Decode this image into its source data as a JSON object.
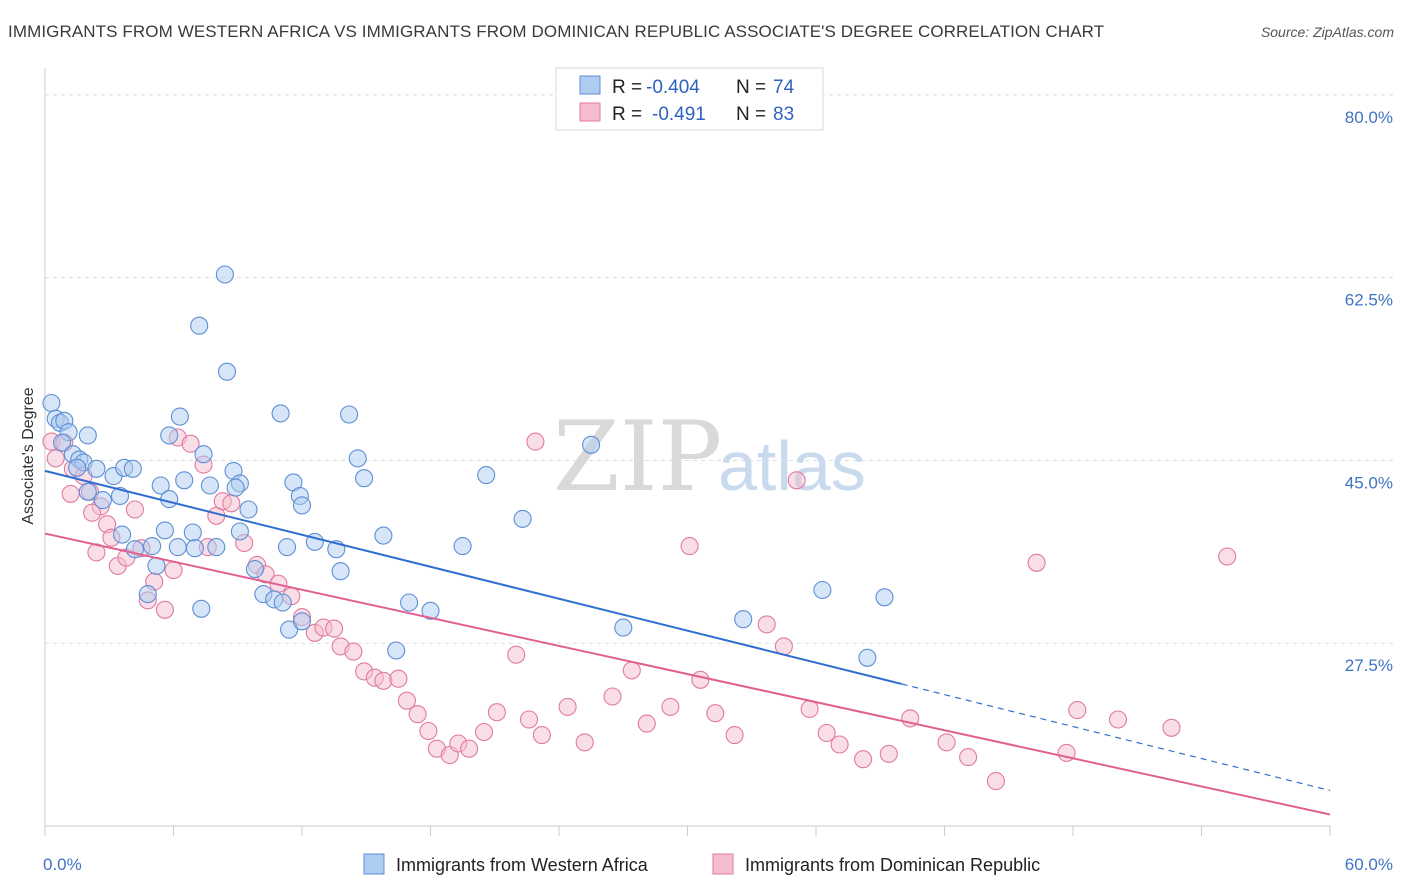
{
  "title": "IMMIGRANTS FROM WESTERN AFRICA VS IMMIGRANTS FROM DOMINICAN REPUBLIC ASSOCIATE'S DEGREE CORRELATION CHART",
  "source": "Source: ZipAtlas.com",
  "watermark": {
    "zip": "ZIP",
    "atlas": "atlas"
  },
  "colors": {
    "blue_fill": "#aecbf0",
    "blue_stroke": "#5d8fd6",
    "blue_line": "#2f6fcf",
    "pink_fill": "#f6bdd0",
    "pink_stroke": "#e07aa0",
    "pink_line": "#e0608f",
    "grid": "#dddddd",
    "axis_text": "#3f73c4"
  },
  "legend": {
    "entries": [
      {
        "r_label": "R =",
        "r_value": "-0.404",
        "n_label": "N =",
        "n_value": "74"
      },
      {
        "r_label": "R =",
        "r_value": "-0.491",
        "n_label": "N =",
        "n_value": "83"
      }
    ]
  },
  "chart_data": {
    "type": "scatter",
    "title": "IMMIGRANTS FROM WESTERN AFRICA VS IMMIGRANTS FROM DOMINICAN REPUBLIC ASSOCIATE'S DEGREE CORRELATION CHART",
    "ylabel": "Associate's Degree",
    "xlabel": "",
    "xlim": [
      0,
      60
    ],
    "ylim": [
      10,
      82
    ],
    "x_tick_labels": [
      "0.0%",
      "60.0%"
    ],
    "y_ticks": [
      {
        "value": 80.0,
        "label": "80.0%"
      },
      {
        "value": 62.5,
        "label": "62.5%"
      },
      {
        "value": 45.0,
        "label": "45.0%"
      },
      {
        "value": 27.5,
        "label": "27.5%"
      }
    ],
    "grid": "horizontal dashed",
    "legend_position": "top-center",
    "series": [
      {
        "name": "Immigrants from Western Africa",
        "color": "#5d8fd6",
        "trend": {
          "x0": 0,
          "y0": 44.0,
          "x1": 40,
          "y1": 23.6,
          "dash_to_x": 60,
          "dash_to_y": 13.4
        },
        "points": [
          [
            0.3,
            50.5
          ],
          [
            0.5,
            49.0
          ],
          [
            0.7,
            48.6
          ],
          [
            0.9,
            48.8
          ],
          [
            1.1,
            47.7
          ],
          [
            0.8,
            46.7
          ],
          [
            1.3,
            45.6
          ],
          [
            1.6,
            45.1
          ],
          [
            1.8,
            44.8
          ],
          [
            2.0,
            47.4
          ],
          [
            1.5,
            44.3
          ],
          [
            2.4,
            44.2
          ],
          [
            2.0,
            42.0
          ],
          [
            2.7,
            41.2
          ],
          [
            3.2,
            43.5
          ],
          [
            3.7,
            44.3
          ],
          [
            3.5,
            41.6
          ],
          [
            4.1,
            44.2
          ],
          [
            3.6,
            37.9
          ],
          [
            4.2,
            36.5
          ],
          [
            5.0,
            36.8
          ],
          [
            5.2,
            34.9
          ],
          [
            4.8,
            32.2
          ],
          [
            5.8,
            47.4
          ],
          [
            5.4,
            42.6
          ],
          [
            5.8,
            41.3
          ],
          [
            5.6,
            38.3
          ],
          [
            6.3,
            49.2
          ],
          [
            6.5,
            43.1
          ],
          [
            6.2,
            36.7
          ],
          [
            6.9,
            38.1
          ],
          [
            7.0,
            36.6
          ],
          [
            7.4,
            45.6
          ],
          [
            7.7,
            42.6
          ],
          [
            8.0,
            36.7
          ],
          [
            7.2,
            57.9
          ],
          [
            8.4,
            62.8
          ],
          [
            8.5,
            53.5
          ],
          [
            8.8,
            44.0
          ],
          [
            9.1,
            42.8
          ],
          [
            8.9,
            42.4
          ],
          [
            9.1,
            38.2
          ],
          [
            9.5,
            40.3
          ],
          [
            9.8,
            34.6
          ],
          [
            10.2,
            32.2
          ],
          [
            10.7,
            31.7
          ],
          [
            11.1,
            31.4
          ],
          [
            11.3,
            36.7
          ],
          [
            11.0,
            49.5
          ],
          [
            11.6,
            42.9
          ],
          [
            11.9,
            41.6
          ],
          [
            12.0,
            40.7
          ],
          [
            12.6,
            37.2
          ],
          [
            13.6,
            36.5
          ],
          [
            13.8,
            34.4
          ],
          [
            14.2,
            49.4
          ],
          [
            14.6,
            45.2
          ],
          [
            14.9,
            43.3
          ],
          [
            15.8,
            37.8
          ],
          [
            16.4,
            26.8
          ],
          [
            17.0,
            31.4
          ],
          [
            18.0,
            30.6
          ],
          [
            19.5,
            36.8
          ],
          [
            20.6,
            43.6
          ],
          [
            22.3,
            39.4
          ],
          [
            25.5,
            46.5
          ],
          [
            27.0,
            29.0
          ],
          [
            32.6,
            29.8
          ],
          [
            36.3,
            32.6
          ],
          [
            38.4,
            26.1
          ],
          [
            39.2,
            31.9
          ],
          [
            11.4,
            28.8
          ],
          [
            12.0,
            29.6
          ],
          [
            7.3,
            30.8
          ]
        ]
      },
      {
        "name": "Immigrants from Dominican Republic",
        "color": "#e07aa0",
        "trend": {
          "x0": 0,
          "y0": 38.0,
          "x1": 60,
          "y1": 11.1
        },
        "points": [
          [
            0.3,
            46.8
          ],
          [
            0.5,
            45.2
          ],
          [
            0.9,
            46.7
          ],
          [
            1.3,
            44.2
          ],
          [
            1.8,
            43.5
          ],
          [
            2.1,
            42.0
          ],
          [
            2.6,
            40.6
          ],
          [
            2.9,
            38.9
          ],
          [
            3.1,
            37.6
          ],
          [
            2.4,
            36.2
          ],
          [
            3.4,
            34.9
          ],
          [
            3.8,
            35.7
          ],
          [
            4.2,
            40.3
          ],
          [
            4.5,
            36.6
          ],
          [
            5.1,
            33.4
          ],
          [
            4.8,
            31.6
          ],
          [
            5.6,
            30.7
          ],
          [
            6.0,
            34.5
          ],
          [
            6.2,
            47.2
          ],
          [
            6.8,
            46.6
          ],
          [
            7.4,
            44.6
          ],
          [
            7.6,
            36.7
          ],
          [
            8.0,
            39.7
          ],
          [
            8.3,
            41.1
          ],
          [
            8.7,
            40.9
          ],
          [
            9.3,
            37.1
          ],
          [
            9.9,
            35.0
          ],
          [
            10.3,
            34.1
          ],
          [
            10.9,
            33.2
          ],
          [
            11.5,
            32.0
          ],
          [
            12.0,
            30.0
          ],
          [
            12.6,
            28.5
          ],
          [
            13.0,
            29.0
          ],
          [
            13.5,
            28.9
          ],
          [
            13.8,
            27.2
          ],
          [
            14.4,
            26.7
          ],
          [
            14.9,
            24.8
          ],
          [
            15.4,
            24.2
          ],
          [
            15.8,
            23.9
          ],
          [
            16.5,
            24.1
          ],
          [
            16.9,
            22.0
          ],
          [
            17.4,
            20.7
          ],
          [
            17.9,
            19.1
          ],
          [
            18.3,
            17.4
          ],
          [
            18.9,
            16.8
          ],
          [
            19.3,
            17.9
          ],
          [
            19.8,
            17.4
          ],
          [
            20.5,
            19.0
          ],
          [
            21.1,
            20.9
          ],
          [
            22.0,
            26.4
          ],
          [
            22.6,
            20.2
          ],
          [
            23.2,
            18.7
          ],
          [
            24.4,
            21.4
          ],
          [
            25.2,
            18.0
          ],
          [
            26.5,
            22.4
          ],
          [
            27.4,
            24.9
          ],
          [
            28.1,
            19.8
          ],
          [
            29.2,
            21.4
          ],
          [
            30.1,
            36.8
          ],
          [
            30.6,
            24.0
          ],
          [
            31.3,
            20.8
          ],
          [
            32.2,
            18.7
          ],
          [
            33.7,
            29.3
          ],
          [
            34.5,
            27.2
          ],
          [
            35.1,
            43.1
          ],
          [
            35.7,
            21.2
          ],
          [
            36.5,
            18.9
          ],
          [
            37.1,
            17.8
          ],
          [
            38.2,
            16.4
          ],
          [
            39.4,
            16.9
          ],
          [
            40.4,
            20.3
          ],
          [
            42.1,
            18.0
          ],
          [
            43.1,
            16.6
          ],
          [
            44.4,
            14.3
          ],
          [
            46.3,
            35.2
          ],
          [
            47.7,
            17.0
          ],
          [
            48.2,
            21.1
          ],
          [
            50.1,
            20.2
          ],
          [
            52.6,
            19.4
          ],
          [
            55.2,
            35.8
          ],
          [
            1.2,
            41.8
          ],
          [
            2.2,
            40.0
          ],
          [
            22.9,
            46.8
          ]
        ]
      }
    ]
  },
  "bottom_legend": [
    {
      "label": "Immigrants from Western Africa"
    },
    {
      "label": "Immigrants from Dominican Republic"
    }
  ]
}
